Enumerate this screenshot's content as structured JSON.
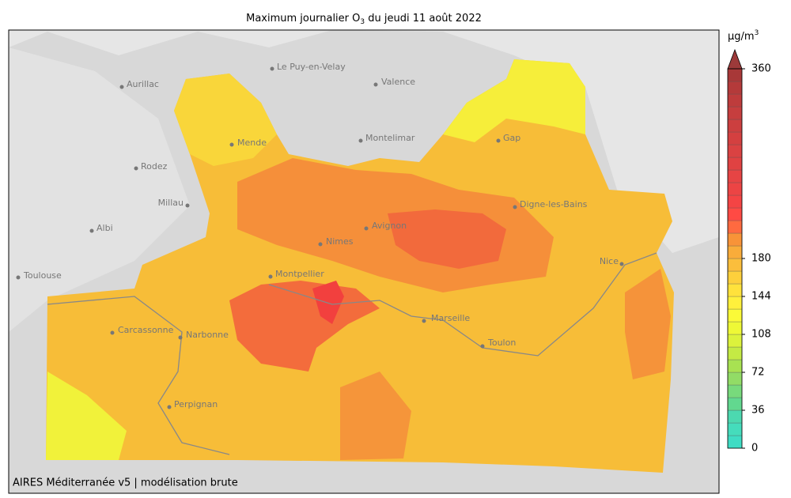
{
  "map": {
    "title": {
      "prefix": "Maximum journalier O",
      "subscript": "3",
      "suffix": " du jeudi 11 août 2022"
    },
    "footer": "AIRES Méditerranée v5 | modélisation brute",
    "cities": [
      "Le Puy-en-Velay",
      "Aurillac",
      "Valence",
      "Mende",
      "Montelimar",
      "Gap",
      "Rodez",
      "Millau",
      "Digne-les-Bains",
      "Albi",
      "Avignon",
      "Nimes",
      "Nice",
      "Toulouse",
      "Montpellier",
      "Marseille",
      "Carcassonne",
      "Narbonne",
      "Toulon",
      "Perpignan"
    ],
    "colorbar": {
      "unit": {
        "base": "µg/m",
        "superscript": "3"
      },
      "lim": [
        0,
        360
      ],
      "ticks": [
        0,
        36,
        72,
        108,
        144,
        180,
        360
      ],
      "level_step": 12,
      "colors": [
        "#3fdcc4",
        "#45dcbc",
        "#4cd9b0",
        "#62d88f",
        "#78da7c",
        "#92dc66",
        "#a8e252",
        "#c4ea44",
        "#dcf23c",
        "#eef836",
        "#fbfa38",
        "#fff03c",
        "#ffe23c",
        "#fdd03c",
        "#fbbe3c",
        "#f9ac3a",
        "#f89338",
        "#ff6a40",
        "#ff4a44",
        "#f44444",
        "#ec4444",
        "#e64444",
        "#e04242",
        "#da4242",
        "#d44040",
        "#cc3f3f",
        "#c63e3e",
        "#be3c3c",
        "#b43a3a",
        "#a83838"
      ],
      "over_color": "#9c3a3a"
    }
  }
}
